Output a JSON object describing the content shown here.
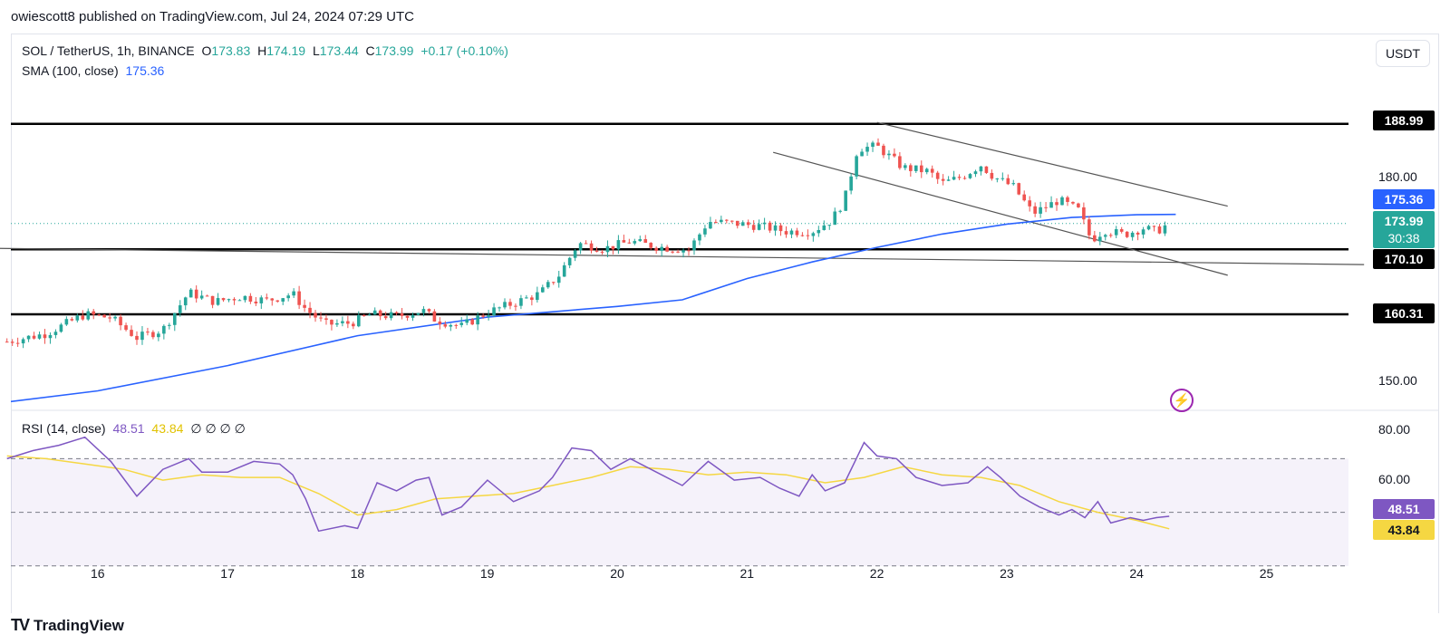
{
  "header": {
    "publisher": "owiescott8 published on TradingView.com, Jul 24, 2024 07:29 UTC"
  },
  "legend": {
    "symbol": "SOL / TetherUS, 1h, BINANCE",
    "open_label": "O",
    "open": "173.83",
    "high_label": "H",
    "high": "174.19",
    "low_label": "L",
    "low": "173.44",
    "close_label": "C",
    "close": "173.99",
    "change": "+0.17 (+0.10%)",
    "sma_label": "SMA (100, close)",
    "sma_value": "175.36",
    "rsi_label": "RSI (14, close)",
    "rsi_value": "48.51",
    "rsi_ma_value": "43.84",
    "rsi_extras": "∅ ∅ ∅ ∅"
  },
  "currency_button": "USDT",
  "colors": {
    "up": "#26a69a",
    "down": "#ef5350",
    "sma": "#2962ff",
    "rsi": "#7e57c2",
    "rsi_ma": "#f5d742",
    "line": "#000000"
  },
  "icons": {
    "footer_logo": "tradingview-logo-icon",
    "alert": "lightning-bolt-icon"
  },
  "price_tags": {
    "r1": "188.99",
    "sma": "175.36",
    "last": "173.99",
    "countdown": "30:38",
    "s1": "170.10",
    "s2": "160.31",
    "rsi": "48.51",
    "rsi_ma": "43.84"
  },
  "axis": {
    "price_ticks": [
      "180.00",
      "150.00"
    ],
    "rsi_ticks": [
      "80.00",
      "60.00"
    ],
    "time_ticks": [
      "16",
      "17",
      "18",
      "19",
      "20",
      "21",
      "22",
      "23",
      "24",
      "25"
    ]
  },
  "footer": {
    "brand": "TradingView"
  },
  "chart_data": {
    "type": "candlestick",
    "interval": "1h",
    "ylim": [
      146,
      194
    ],
    "hlines": [
      188.99,
      170.1,
      160.31
    ],
    "trendlines": [
      {
        "from": [
          22.0,
          189.2
        ],
        "to": [
          24.7,
          176.6
        ]
      },
      {
        "from": [
          21.2,
          184.7
        ],
        "to": [
          24.7,
          166.2
        ]
      },
      {
        "from": [
          15.0,
          170.3
        ],
        "to": [
          25.75,
          167.8
        ]
      }
    ],
    "price_path": [
      [
        15.3,
        156.2
      ],
      [
        15.6,
        157.4
      ],
      [
        15.9,
        160.3
      ],
      [
        16.1,
        159.8
      ],
      [
        16.3,
        156.8
      ],
      [
        16.5,
        158.0
      ],
      [
        16.7,
        163.6
      ],
      [
        16.9,
        162.2
      ],
      [
        17.1,
        163.0
      ],
      [
        17.3,
        162.4
      ],
      [
        17.5,
        163.4
      ],
      [
        17.6,
        161.1
      ],
      [
        17.75,
        158.8
      ],
      [
        17.95,
        159.0
      ],
      [
        18.1,
        160.3
      ],
      [
        18.3,
        160.0
      ],
      [
        18.5,
        160.9
      ],
      [
        18.6,
        159.5
      ],
      [
        18.8,
        158.5
      ],
      [
        19.0,
        160.6
      ],
      [
        19.2,
        162.0
      ],
      [
        19.4,
        163.4
      ],
      [
        19.55,
        166.2
      ],
      [
        19.7,
        171.0
      ],
      [
        19.9,
        170.2
      ],
      [
        20.1,
        171.3
      ],
      [
        20.3,
        170.5
      ],
      [
        20.55,
        170.0
      ],
      [
        20.7,
        174.3
      ],
      [
        20.9,
        174.0
      ],
      [
        21.1,
        173.6
      ],
      [
        21.3,
        172.8
      ],
      [
        21.5,
        172.8
      ],
      [
        21.65,
        174.5
      ],
      [
        21.75,
        177.6
      ],
      [
        21.85,
        185.3
      ],
      [
        22.0,
        185.6
      ],
      [
        22.2,
        182.4
      ],
      [
        22.4,
        181.8
      ],
      [
        22.5,
        180.0
      ],
      [
        22.65,
        181.0
      ],
      [
        22.8,
        182.8
      ],
      [
        22.9,
        181.0
      ],
      [
        23.05,
        179.5
      ],
      [
        23.2,
        175.5
      ],
      [
        23.4,
        177.5
      ],
      [
        23.55,
        176.0
      ],
      [
        23.65,
        171.5
      ],
      [
        23.75,
        173.0
      ],
      [
        23.9,
        172.3
      ],
      [
        24.05,
        173.3
      ],
      [
        24.15,
        172.8
      ],
      [
        24.25,
        173.99
      ]
    ],
    "sma": [
      [
        15.25,
        147.0
      ],
      [
        16.0,
        148.8
      ],
      [
        17.0,
        152.6
      ],
      [
        18.0,
        157.1
      ],
      [
        19.0,
        159.9
      ],
      [
        20.0,
        161.5
      ],
      [
        20.5,
        162.5
      ],
      [
        21.0,
        165.7
      ],
      [
        21.5,
        168.2
      ],
      [
        22.0,
        170.4
      ],
      [
        22.5,
        172.4
      ],
      [
        23.0,
        173.9
      ],
      [
        23.5,
        174.9
      ],
      [
        24.0,
        175.3
      ],
      [
        24.3,
        175.36
      ]
    ],
    "rsi": [
      [
        15.3,
        70
      ],
      [
        15.5,
        73
      ],
      [
        15.7,
        75
      ],
      [
        15.9,
        78
      ],
      [
        16.1,
        69
      ],
      [
        16.3,
        56
      ],
      [
        16.5,
        66
      ],
      [
        16.7,
        70
      ],
      [
        16.8,
        65
      ],
      [
        17.0,
        65
      ],
      [
        17.2,
        69
      ],
      [
        17.4,
        68
      ],
      [
        17.5,
        64
      ],
      [
        17.6,
        55
      ],
      [
        17.7,
        43
      ],
      [
        17.9,
        45
      ],
      [
        18.0,
        44
      ],
      [
        18.15,
        61
      ],
      [
        18.3,
        58
      ],
      [
        18.45,
        62
      ],
      [
        18.55,
        63
      ],
      [
        18.65,
        49
      ],
      [
        18.8,
        52
      ],
      [
        19.0,
        62
      ],
      [
        19.2,
        54
      ],
      [
        19.4,
        58
      ],
      [
        19.5,
        63
      ],
      [
        19.65,
        74
      ],
      [
        19.8,
        73
      ],
      [
        19.95,
        66
      ],
      [
        20.1,
        70
      ],
      [
        20.3,
        65
      ],
      [
        20.5,
        60
      ],
      [
        20.7,
        69
      ],
      [
        20.9,
        62
      ],
      [
        21.1,
        63
      ],
      [
        21.25,
        59
      ],
      [
        21.4,
        56
      ],
      [
        21.5,
        64
      ],
      [
        21.6,
        58
      ],
      [
        21.75,
        61
      ],
      [
        21.9,
        76
      ],
      [
        22.0,
        71
      ],
      [
        22.15,
        70
      ],
      [
        22.3,
        63
      ],
      [
        22.5,
        60
      ],
      [
        22.7,
        61
      ],
      [
        22.85,
        67
      ],
      [
        22.95,
        63
      ],
      [
        23.1,
        56
      ],
      [
        23.25,
        52
      ],
      [
        23.4,
        49
      ],
      [
        23.5,
        51
      ],
      [
        23.6,
        48
      ],
      [
        23.7,
        54
      ],
      [
        23.8,
        46
      ],
      [
        23.95,
        48
      ],
      [
        24.05,
        47
      ],
      [
        24.15,
        48
      ],
      [
        24.25,
        48.51
      ]
    ],
    "rsi_ma": [
      [
        15.3,
        71
      ],
      [
        15.6,
        70
      ],
      [
        15.9,
        68
      ],
      [
        16.2,
        66
      ],
      [
        16.5,
        62
      ],
      [
        16.8,
        64
      ],
      [
        17.1,
        63
      ],
      [
        17.4,
        63
      ],
      [
        17.7,
        57
      ],
      [
        18.0,
        49
      ],
      [
        18.3,
        51
      ],
      [
        18.6,
        55
      ],
      [
        18.9,
        56
      ],
      [
        19.2,
        57
      ],
      [
        19.5,
        60
      ],
      [
        19.8,
        63
      ],
      [
        20.1,
        67
      ],
      [
        20.4,
        66
      ],
      [
        20.7,
        64
      ],
      [
        21.0,
        65
      ],
      [
        21.3,
        64
      ],
      [
        21.6,
        61
      ],
      [
        21.9,
        63
      ],
      [
        22.2,
        67
      ],
      [
        22.5,
        64
      ],
      [
        22.8,
        63
      ],
      [
        23.1,
        60
      ],
      [
        23.4,
        54
      ],
      [
        23.7,
        50
      ],
      [
        24.0,
        47
      ],
      [
        24.25,
        43.84
      ]
    ],
    "rsi_ylim": [
      35,
      85
    ],
    "rsi_bands": [
      70,
      50,
      30
    ]
  }
}
